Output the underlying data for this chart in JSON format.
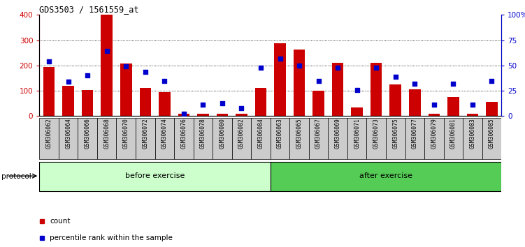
{
  "title": "GDS3503 / 1561559_at",
  "samples": [
    "GSM306062",
    "GSM306064",
    "GSM306066",
    "GSM306068",
    "GSM306070",
    "GSM306072",
    "GSM306074",
    "GSM306076",
    "GSM306078",
    "GSM306080",
    "GSM306082",
    "GSM306084",
    "GSM306063",
    "GSM306065",
    "GSM306067",
    "GSM306069",
    "GSM306071",
    "GSM306073",
    "GSM306075",
    "GSM306077",
    "GSM306079",
    "GSM306081",
    "GSM306083",
    "GSM306085"
  ],
  "counts": [
    195,
    120,
    103,
    400,
    207,
    112,
    95,
    8,
    10,
    10,
    8,
    112,
    288,
    263,
    101,
    210,
    35,
    210,
    125,
    105,
    10,
    75,
    10,
    57
  ],
  "percentile_ranks": [
    54,
    34,
    40,
    64,
    49,
    44,
    35,
    2,
    11,
    13,
    8,
    48,
    57,
    50,
    35,
    48,
    26,
    48,
    39,
    32,
    11,
    32,
    11,
    35
  ],
  "before_exercise_count": 12,
  "after_exercise_count": 12,
  "bar_color": "#cc0000",
  "dot_color": "#0000cc",
  "ylim_left": [
    0,
    400
  ],
  "ylim_right": [
    0,
    100
  ],
  "yticks_left": [
    0,
    100,
    200,
    300,
    400
  ],
  "yticks_right": [
    0,
    25,
    50,
    75,
    100
  ],
  "ytick_labels_right": [
    "0",
    "25",
    "50",
    "75",
    "100%"
  ],
  "grid_color": "black",
  "before_color": "#ccffcc",
  "after_color": "#55cc55",
  "protocol_label": "protocol",
  "before_label": "before exercise",
  "after_label": "after exercise",
  "legend_count_label": "count",
  "legend_pct_label": "percentile rank within the sample",
  "plot_bg": "#ffffff",
  "tick_bg": "#cccccc"
}
